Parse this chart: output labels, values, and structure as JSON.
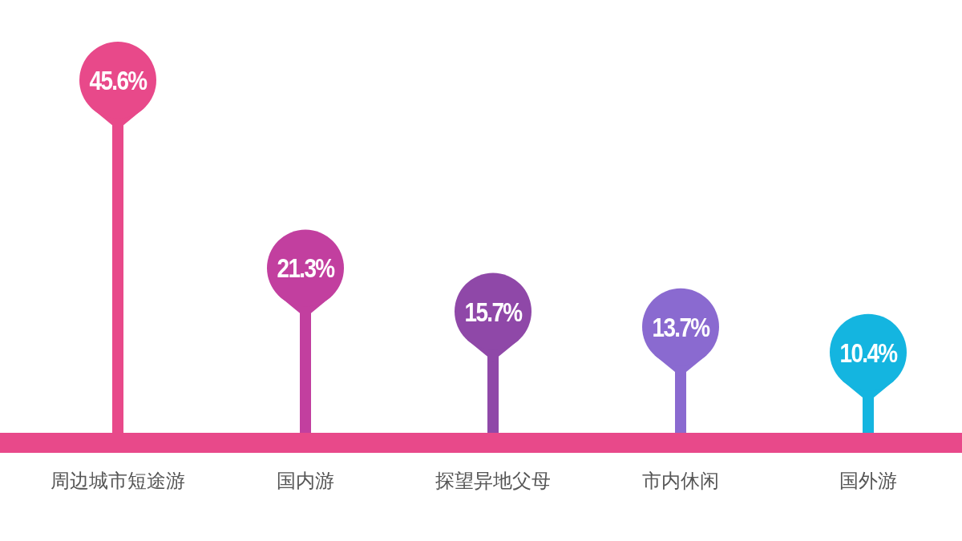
{
  "chart_data": {
    "type": "lollipop",
    "categories": [
      "周边城市短途游",
      "国内游",
      "探望异地父母",
      "市内休闲",
      "国外游"
    ],
    "values": [
      45.6,
      21.3,
      15.7,
      13.7,
      10.4
    ],
    "value_labels": [
      "45.6%",
      "21.3%",
      "15.7%",
      "13.7%",
      "10.4%"
    ],
    "colors": [
      "#e8498a",
      "#c23f9f",
      "#8f48a8",
      "#8a6ad0",
      "#14b5e0"
    ]
  }
}
